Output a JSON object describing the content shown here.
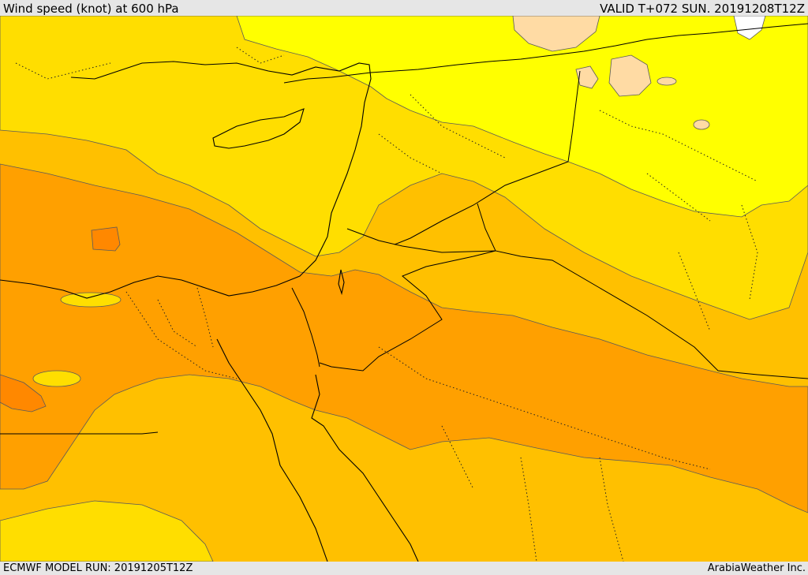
{
  "header": {
    "title": "Wind speed (knot) at 600 hPa",
    "valid": "VALID T+072 SUN. 20191208T12Z"
  },
  "footer": {
    "model_run": "ECMWF MODEL RUN: 20191205T12Z",
    "credit": "ArabiaWeather Inc."
  },
  "colors": {
    "band_lightest": "#ffff00",
    "band_gold": "#ffde00",
    "band_amber": "#ffc000",
    "band_orange": "#ffa000",
    "band_deep_orange": "#ff8800",
    "band_cream": "#ffdba4",
    "band_white": "#ffffff"
  }
}
